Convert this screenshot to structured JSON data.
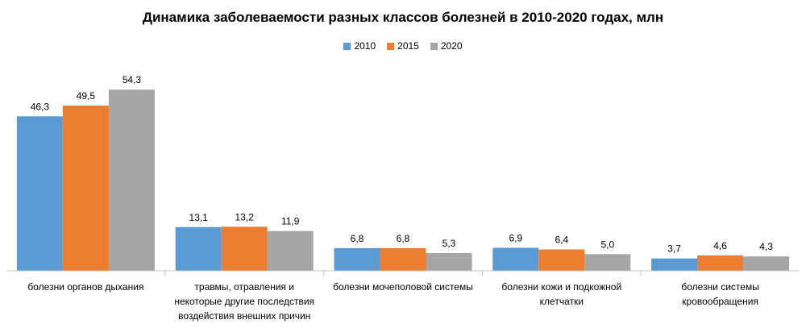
{
  "chart_data": {
    "type": "bar",
    "title": "Динамика заболеваемости разных классов болезней  в 2010-2020 годах, млн",
    "xlabel": "",
    "ylabel": "",
    "ylim": [
      0,
      60
    ],
    "grid": false,
    "legend_position": "top",
    "categories": [
      [
        "болезни органов дыхания"
      ],
      [
        "травмы, отравления и",
        "некоторые другие последствия",
        "воздействия внешних причин"
      ],
      [
        "болезни мочеполовой системы"
      ],
      [
        "болезни кожи и подкожной",
        "клетчатки"
      ],
      [
        "болезни системы",
        "кровообращения"
      ]
    ],
    "series": [
      {
        "name": "2010",
        "color": "#5B9BD5",
        "values": [
          46.3,
          13.1,
          6.8,
          6.9,
          3.7
        ],
        "labels": [
          "46,3",
          "13,1",
          "6,8",
          "6,9",
          "3,7"
        ]
      },
      {
        "name": "2015",
        "color": "#ED7D31",
        "values": [
          49.5,
          13.2,
          6.8,
          6.4,
          4.6
        ],
        "labels": [
          "49,5",
          "13,2",
          "6,8",
          "6,4",
          "4,6"
        ]
      },
      {
        "name": "2020",
        "color": "#A5A5A5",
        "values": [
          54.3,
          11.9,
          5.3,
          5.0,
          4.3
        ],
        "labels": [
          "54,3",
          "11,9",
          "5,3",
          "5,0",
          "4,3"
        ]
      }
    ]
  }
}
